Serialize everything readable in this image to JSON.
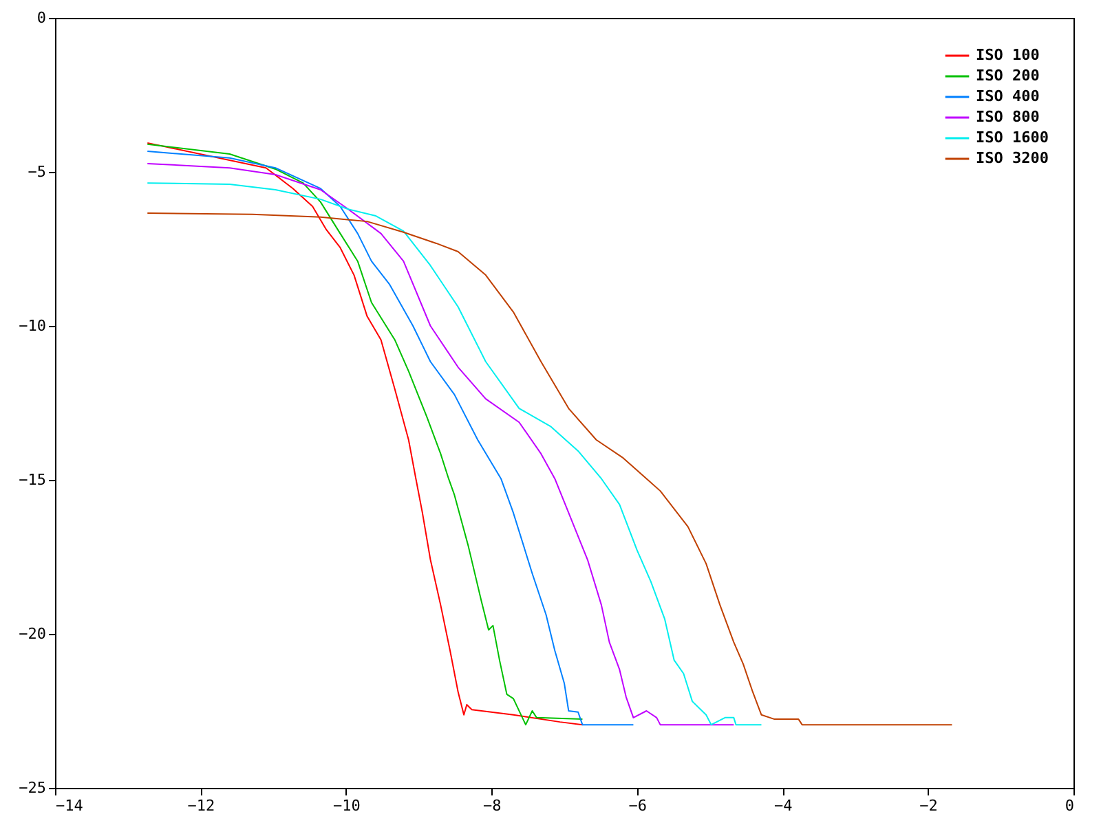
{
  "chart_data": {
    "type": "line",
    "xlim": [
      -14,
      0
    ],
    "ylim": [
      -25,
      0
    ],
    "xticks": [
      -14,
      -12,
      -10,
      -8,
      -6,
      -4,
      -2,
      0
    ],
    "yticks": [
      -25,
      -20,
      -15,
      -10,
      -5,
      0
    ],
    "grid": false,
    "legend": "top right",
    "marker": "none",
    "line_style": "solid",
    "series": [
      {
        "name": "ISO 100",
        "color": "#ff0000",
        "x": [
          -12.73,
          -11.1,
          -10.73,
          -10.46,
          -10.27,
          -10.08,
          -9.89,
          -9.71,
          -9.52,
          -9.33,
          -9.14,
          -9.04,
          -8.95,
          -8.84,
          -8.7,
          -8.57,
          -8.46,
          -8.38,
          -8.34,
          -8.27,
          -7.7,
          -7.06,
          -6.75
        ],
        "values": [
          -4.06,
          -4.87,
          -5.54,
          -6.12,
          -6.88,
          -7.46,
          -8.35,
          -9.69,
          -10.45,
          -12.05,
          -13.7,
          -14.96,
          -16.07,
          -17.59,
          -19.06,
          -20.54,
          -21.88,
          -22.63,
          -22.3,
          -22.46,
          -22.63,
          -22.86,
          -22.95
        ]
      },
      {
        "name": "ISO 200",
        "color": "#00c000",
        "x": [
          -12.73,
          -11.6,
          -10.97,
          -10.59,
          -10.35,
          -10.08,
          -9.84,
          -9.65,
          -9.33,
          -9.14,
          -8.89,
          -8.7,
          -8.59,
          -8.51,
          -8.32,
          -8.14,
          -8.04,
          -7.98,
          -7.89,
          -7.79,
          -7.7,
          -7.53,
          -7.44,
          -7.38,
          -6.75
        ],
        "values": [
          -4.1,
          -4.42,
          -4.91,
          -5.36,
          -5.98,
          -7.0,
          -7.9,
          -9.24,
          -10.45,
          -11.47,
          -12.95,
          -14.15,
          -14.96,
          -15.49,
          -17.14,
          -18.93,
          -19.87,
          -19.73,
          -20.85,
          -21.96,
          -22.1,
          -22.95,
          -22.5,
          -22.72,
          -22.77
        ]
      },
      {
        "name": "ISO 400",
        "color": "#0080ff",
        "x": [
          -12.73,
          -11.6,
          -10.97,
          -10.35,
          -10.08,
          -9.84,
          -9.65,
          -9.4,
          -9.08,
          -8.84,
          -8.51,
          -8.19,
          -7.87,
          -7.7,
          -7.44,
          -7.25,
          -7.13,
          -7.0,
          -6.94,
          -6.81,
          -6.75,
          -6.05
        ],
        "values": [
          -4.33,
          -4.55,
          -4.87,
          -5.54,
          -6.12,
          -7.0,
          -7.9,
          -8.66,
          -10.0,
          -11.16,
          -12.23,
          -13.7,
          -14.96,
          -16.07,
          -18.04,
          -19.38,
          -20.54,
          -21.6,
          -22.5,
          -22.54,
          -22.95,
          -22.95
        ]
      },
      {
        "name": "ISO 800",
        "color": "#c000ff",
        "x": [
          -12.73,
          -11.6,
          -10.97,
          -10.35,
          -9.97,
          -9.52,
          -9.21,
          -8.84,
          -8.46,
          -8.08,
          -7.62,
          -7.32,
          -7.13,
          -6.94,
          -6.68,
          -6.49,
          -6.38,
          -6.24,
          -6.15,
          -6.05,
          -5.87,
          -5.73,
          -5.68,
          -4.67
        ],
        "values": [
          -4.73,
          -4.87,
          -5.09,
          -5.58,
          -6.21,
          -7.0,
          -7.9,
          -10.0,
          -11.34,
          -12.37,
          -13.13,
          -14.15,
          -14.96,
          -16.07,
          -17.59,
          -19.06,
          -20.27,
          -21.16,
          -22.05,
          -22.72,
          -22.5,
          -22.72,
          -22.95,
          -22.95
        ]
      },
      {
        "name": "ISO 1600",
        "color": "#00eeee",
        "x": [
          -12.73,
          -11.6,
          -10.97,
          -10.35,
          -9.97,
          -9.59,
          -9.21,
          -8.84,
          -8.46,
          -8.08,
          -7.62,
          -7.19,
          -6.81,
          -6.49,
          -6.24,
          -6.0,
          -5.81,
          -5.62,
          -5.49,
          -5.36,
          -5.24,
          -5.05,
          -4.98,
          -4.79,
          -4.67,
          -4.64,
          -4.29
        ],
        "values": [
          -5.36,
          -5.4,
          -5.58,
          -5.89,
          -6.21,
          -6.43,
          -6.92,
          -8.04,
          -9.38,
          -11.16,
          -12.68,
          -13.26,
          -14.06,
          -14.96,
          -15.8,
          -17.28,
          -18.3,
          -19.51,
          -20.85,
          -21.29,
          -22.19,
          -22.63,
          -22.95,
          -22.72,
          -22.72,
          -22.95,
          -22.95
        ]
      },
      {
        "name": "ISO 3200",
        "color": "#c04000",
        "x": [
          -12.73,
          -11.29,
          -10.35,
          -9.71,
          -9.21,
          -8.76,
          -8.46,
          -8.08,
          -7.7,
          -7.32,
          -6.94,
          -6.56,
          -6.19,
          -5.87,
          -5.68,
          -5.3,
          -5.05,
          -4.86,
          -4.67,
          -4.54,
          -4.41,
          -4.29,
          -4.11,
          -3.78,
          -3.73,
          -1.67
        ],
        "values": [
          -6.34,
          -6.38,
          -6.47,
          -6.61,
          -6.96,
          -7.32,
          -7.59,
          -8.35,
          -9.55,
          -11.16,
          -12.68,
          -13.7,
          -14.29,
          -14.96,
          -15.36,
          -16.52,
          -17.72,
          -19.06,
          -20.27,
          -20.98,
          -21.88,
          -22.63,
          -22.77,
          -22.77,
          -22.95,
          -22.95
        ]
      }
    ]
  }
}
